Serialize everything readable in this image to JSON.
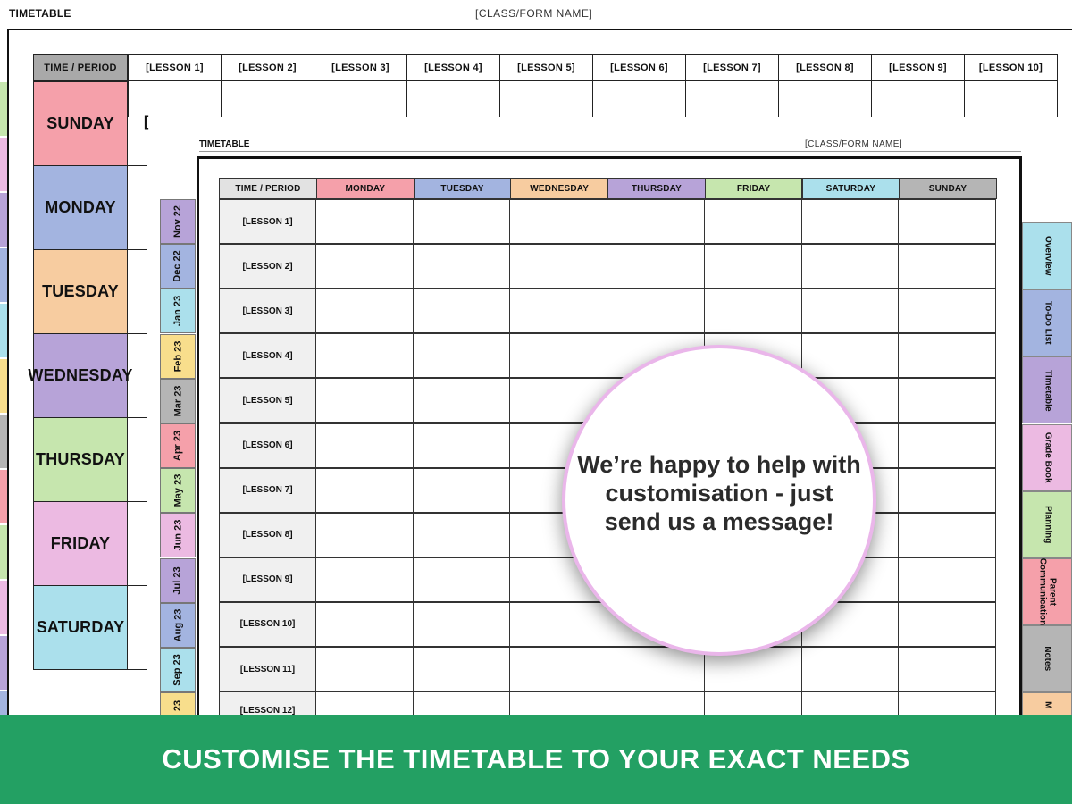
{
  "back_page": {
    "title": "TIMETABLE",
    "class_name": "[CLASS/FORM NAME]",
    "corner_label": "TIME / PERIOD",
    "lessons": [
      "[LESSON 1]",
      "[LESSON 2]",
      "[LESSON 3]",
      "[LESSON 4]",
      "[LESSON 5]",
      "[LESSON 6]",
      "[LESSON 7]",
      "[LESSON 8]",
      "[LESSON 9]",
      "[LESSON 10]"
    ],
    "days": [
      {
        "label": "SUNDAY",
        "color": "#f5a0aa"
      },
      {
        "label": "MONDAY",
        "color": "#a3b4e0"
      },
      {
        "label": "TUESDAY",
        "color": "#f7cca0"
      },
      {
        "label": "WEDNESDAY",
        "color": "#b7a3d8"
      },
      {
        "label": "THURSDAY",
        "color": "#c6e6ae"
      },
      {
        "label": "FRIDAY",
        "color": "#ecbae2"
      },
      {
        "label": "SATURDAY",
        "color": "#abe0ec"
      }
    ],
    "partial_cell_text": "["
  },
  "month_tabs": [
    {
      "label": "Nov 22",
      "color": "#b7a3d8"
    },
    {
      "label": "Dec 22",
      "color": "#a3b4e0"
    },
    {
      "label": "Jan 23",
      "color": "#abe0ec"
    },
    {
      "label": "Feb 23",
      "color": "#f8de8c"
    },
    {
      "label": "Mar 23",
      "color": "#b5b5b5"
    },
    {
      "label": "Apr 23",
      "color": "#f5a0aa"
    },
    {
      "label": "May 23",
      "color": "#c6e6ae"
    },
    {
      "label": "Jun 23",
      "color": "#ecbae2"
    },
    {
      "label": "Jul 23",
      "color": "#b7a3d8"
    },
    {
      "label": "Aug 23",
      "color": "#a3b4e0"
    },
    {
      "label": "Sep 23",
      "color": "#abe0ec"
    },
    {
      "label": "23",
      "color": "#f8de8c"
    }
  ],
  "front_page": {
    "title": "TIMETABLE",
    "class_name": "[CLASS/FORM NAME]",
    "corner_label": "TIME / PERIOD",
    "days": [
      {
        "label": "MONDAY",
        "color": "#f5a0aa"
      },
      {
        "label": "TUESDAY",
        "color": "#a3b4e0"
      },
      {
        "label": "WEDNESDAY",
        "color": "#f7cca0"
      },
      {
        "label": "THURSDAY",
        "color": "#b7a3d8"
      },
      {
        "label": "FRIDAY",
        "color": "#c6e6ae"
      },
      {
        "label": "SATURDAY",
        "color": "#abe0ec"
      },
      {
        "label": "SUNDAY",
        "color": "#b5b5b5"
      }
    ],
    "lessons": [
      "[LESSON 1]",
      "[LESSON 2]",
      "[LESSON 3]",
      "[LESSON 4]",
      "[LESSON 5]",
      "[LESSON 6]",
      "[LESSON 7]",
      "[LESSON 8]",
      "[LESSON 9]",
      "[LESSON 10]",
      "[LESSON 11]",
      "[LESSON 12]"
    ]
  },
  "side_tabs": [
    {
      "label": "Overview",
      "color": "#abe0ec"
    },
    {
      "label": "To-Do List",
      "color": "#a3b4e0"
    },
    {
      "label": "Timetable",
      "color": "#b7a3d8"
    },
    {
      "label": "Grade Book",
      "color": "#ecbae2"
    },
    {
      "label": "Planning",
      "color": "#c6e6ae"
    },
    {
      "label": "Parent Communication",
      "color": "#f5a0aa"
    },
    {
      "label": "Notes",
      "color": "#b5b5b5"
    },
    {
      "label": "M",
      "color": "#f7cca0"
    }
  ],
  "message": "We’re happy to help with customisation - just send us a message!",
  "banner": "CUSTOMISE THE TIMETABLE TO YOUR EXACT NEEDS"
}
